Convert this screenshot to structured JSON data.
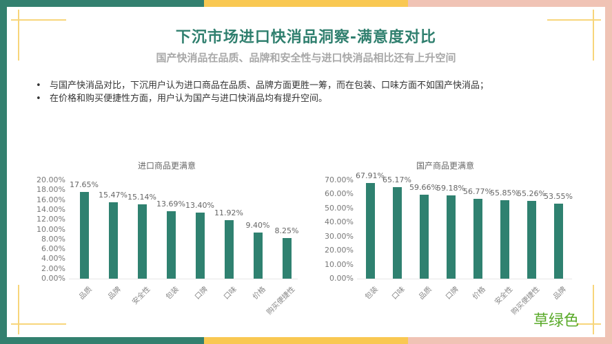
{
  "header": {
    "title": "下沉市场进口快消品洞察-满意度对比",
    "subtitle": "国产快消品在品质、品牌和安全性与进口快消品相比还有上升空间"
  },
  "bullets": [
    "与国产快消品对比，下沉用户认为进口商品在品质、品牌方面更胜一筹，而在包装、口味方面不如国产快消品；",
    "在价格和购买便捷性方面，用户认为国产与进口快消品均有提升空间。"
  ],
  "bullet_glyph": "•",
  "footer_tag": "草绿色",
  "colors": {
    "bar": "#2f8170",
    "title": "#2f7f6e",
    "frame_teal": "#33806f",
    "frame_yellow": "#f9c852",
    "frame_pink": "#f0c3b5",
    "corner_lines": "#f7d57a",
    "tag": "#5aaa2a"
  },
  "chart_data": [
    {
      "type": "bar",
      "title": "进口商品更满意",
      "categories": [
        "品质",
        "品牌",
        "安全性",
        "包装",
        "口牌",
        "口味",
        "价格",
        "购买便捷性"
      ],
      "values": [
        17.65,
        15.47,
        15.14,
        13.69,
        13.4,
        11.92,
        9.4,
        8.25
      ],
      "value_labels": [
        "17.65%",
        "15.47%",
        "15.14%",
        "13.69%",
        "13.40%",
        "11.92%",
        "9.40%",
        "8.25%"
      ],
      "yticks": [
        "20.00%",
        "18.00%",
        "16.00%",
        "14.00%",
        "12.00%",
        "10.00%",
        "8.00%",
        "6.00%",
        "4.00%",
        "2.00%",
        "0.00%"
      ],
      "ylim": [
        0,
        20
      ],
      "xlabel": "",
      "ylabel": "",
      "grid": false,
      "legend": "none"
    },
    {
      "type": "bar",
      "title": "国产商品更满意",
      "categories": [
        "包装",
        "口味",
        "品质",
        "口牌",
        "价格",
        "安全性",
        "购买便捷性",
        "品牌"
      ],
      "values": [
        67.91,
        65.17,
        59.66,
        59.18,
        56.77,
        55.85,
        55.26,
        53.55
      ],
      "value_labels": [
        "67.91%",
        "65.17%",
        "59.66%",
        "59.18%",
        "56.77%",
        "55.85%",
        "55.26%",
        "53.55%"
      ],
      "yticks": [
        "70.00%",
        "60.00%",
        "50.00%",
        "40.00%",
        "30.00%",
        "20.00%",
        "10.00%",
        "0.00%"
      ],
      "ylim": [
        0,
        70
      ],
      "xlabel": "",
      "ylabel": "",
      "grid": false,
      "legend": "none"
    }
  ]
}
